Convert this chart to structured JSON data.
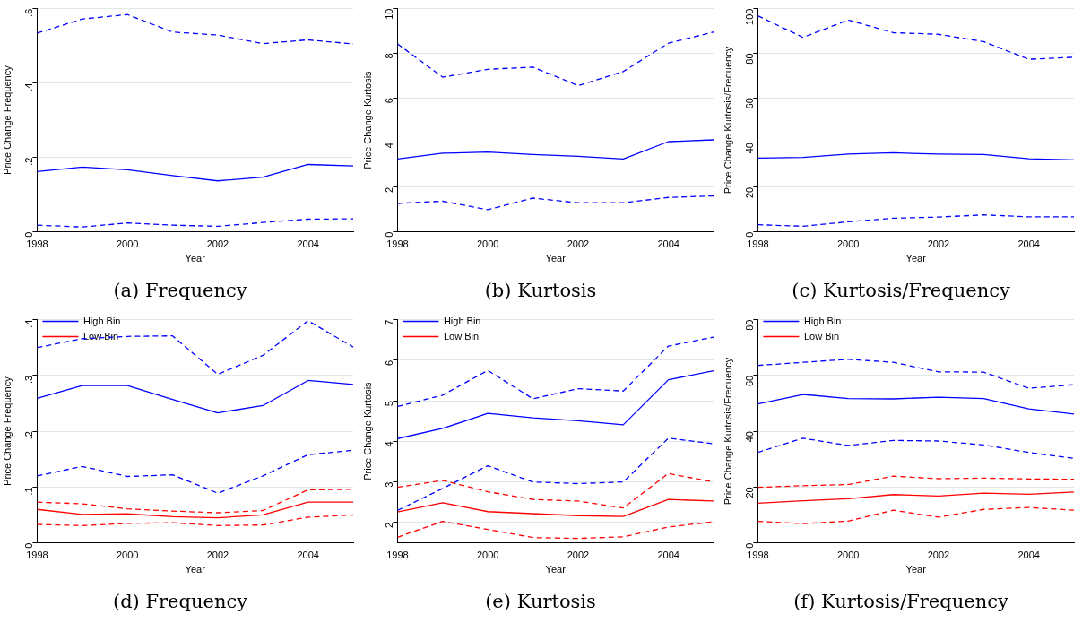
{
  "chart_data": [
    {
      "type": "line",
      "title": "(a)  Frequency",
      "xlabel": "Year",
      "ylabel": "Price Change Frequency",
      "x": [
        1998,
        1999,
        2000,
        2001,
        2002,
        2003,
        2004,
        2005
      ],
      "xlim": [
        1998,
        2005
      ],
      "xticks": [
        1998,
        2000,
        2002,
        2004
      ],
      "ylim": [
        0,
        0.6
      ],
      "yticks": [
        0,
        {
          "value": 0.2,
          "label": ".2"
        },
        {
          "value": 0.4,
          "label": ".4"
        },
        {
          "value": 0.6,
          "label": ".6"
        }
      ],
      "grid": "y",
      "legend": false,
      "marker": "none",
      "series": [
        {
          "color": "#0000ff",
          "line_style": "dashed",
          "values": [
            0.534,
            0.572,
            0.584,
            0.537,
            0.529,
            0.506,
            0.516,
            0.505
          ]
        },
        {
          "color": "#0000ff",
          "line_style": "solid",
          "values": [
            0.162,
            0.174,
            0.167,
            0.151,
            0.137,
            0.147,
            0.181,
            0.177
          ]
        },
        {
          "color": "#0000ff",
          "line_style": "dashed",
          "values": [
            0.018,
            0.013,
            0.024,
            0.018,
            0.015,
            0.025,
            0.034,
            0.035
          ]
        }
      ]
    },
    {
      "type": "line",
      "title": "(b)  Kurtosis",
      "xlabel": "Year",
      "ylabel": "Price Change Kurtosis",
      "x": [
        1998,
        1999,
        2000,
        2001,
        2002,
        2003,
        2004,
        2005
      ],
      "xlim": [
        1998,
        2005
      ],
      "xticks": [
        1998,
        2000,
        2002,
        2004
      ],
      "ylim": [
        0,
        10
      ],
      "yticks": [
        0,
        2,
        4,
        6,
        8,
        10
      ],
      "grid": "y",
      "legend": false,
      "marker": "none",
      "series": [
        {
          "color": "#0000ff",
          "line_style": "dashed",
          "values": [
            8.42,
            6.93,
            7.28,
            7.38,
            6.55,
            7.18,
            8.45,
            8.95
          ]
        },
        {
          "color": "#0000ff",
          "line_style": "solid",
          "values": [
            3.26,
            3.52,
            3.57,
            3.46,
            3.38,
            3.26,
            4.04,
            4.12
          ]
        },
        {
          "color": "#0000ff",
          "line_style": "dashed",
          "values": [
            1.27,
            1.37,
            0.99,
            1.51,
            1.3,
            1.3,
            1.54,
            1.61
          ]
        }
      ]
    },
    {
      "type": "line",
      "title": "(c)  Kurtosis/Frequency",
      "xlabel": "Year",
      "ylabel": "Price Change Kurtosis/Frequency",
      "x": [
        1998,
        1999,
        2000,
        2001,
        2002,
        2003,
        2004,
        2005
      ],
      "xlim": [
        1998,
        2005
      ],
      "xticks": [
        1998,
        2000,
        2002,
        2004
      ],
      "ylim": [
        0,
        100
      ],
      "yticks": [
        0,
        20,
        40,
        60,
        80,
        100
      ],
      "grid": "y",
      "legend": false,
      "marker": "none",
      "series": [
        {
          "color": "#0000ff",
          "line_style": "dashed",
          "values": [
            96.8,
            87.1,
            94.9,
            89.2,
            88.5,
            85.2,
            77.3,
            78.2
          ]
        },
        {
          "color": "#0000ff",
          "line_style": "solid",
          "values": [
            33.0,
            33.3,
            34.8,
            35.4,
            34.8,
            34.6,
            32.7,
            32.2
          ]
        },
        {
          "color": "#0000ff",
          "line_style": "dashed",
          "values": [
            3.2,
            2.5,
            4.5,
            6.1,
            6.6,
            7.6,
            6.7,
            6.7
          ]
        }
      ]
    },
    {
      "type": "line",
      "title": "(d)  Frequency",
      "xlabel": "Year",
      "ylabel": "Price Change Frequency",
      "x": [
        1998,
        1999,
        2000,
        2001,
        2002,
        2003,
        2004,
        2005
      ],
      "xlim": [
        1998,
        2005
      ],
      "xticks": [
        1998,
        2000,
        2002,
        2004
      ],
      "ylim": [
        0,
        0.4
      ],
      "yticks": [
        0,
        {
          "value": 0.1,
          "label": ".1"
        },
        {
          "value": 0.2,
          "label": ".2"
        },
        {
          "value": 0.3,
          "label": ".3"
        },
        {
          "value": 0.4,
          "label": ".4"
        }
      ],
      "grid": "y",
      "legend": "top left",
      "marker": "none",
      "series": [
        {
          "name": "High Bin",
          "color": "#0000ff",
          "line_style": "solid",
          "values": [
            0.259,
            0.282,
            0.282,
            0.257,
            0.233,
            0.246,
            0.291,
            0.284
          ]
        },
        {
          "name": "Low Bin",
          "color": "#ff0000",
          "line_style": "solid",
          "values": [
            0.06,
            0.051,
            0.052,
            0.047,
            0.045,
            0.05,
            0.073,
            0.073
          ]
        },
        {
          "color": "#0000ff",
          "line_style": "dashed",
          "values": [
            0.35,
            0.366,
            0.37,
            0.371,
            0.302,
            0.336,
            0.398,
            0.351
          ]
        },
        {
          "color": "#0000ff",
          "line_style": "dashed",
          "values": [
            0.12,
            0.137,
            0.119,
            0.122,
            0.089,
            0.12,
            0.158,
            0.166
          ]
        },
        {
          "color": "#ff0000",
          "line_style": "dashed",
          "values": [
            0.073,
            0.07,
            0.061,
            0.057,
            0.054,
            0.058,
            0.095,
            0.096
          ]
        },
        {
          "color": "#ff0000",
          "line_style": "dashed",
          "values": [
            0.033,
            0.031,
            0.035,
            0.036,
            0.031,
            0.032,
            0.046,
            0.05
          ]
        }
      ]
    },
    {
      "type": "line",
      "title": "(e)  Kurtosis",
      "xlabel": "Year",
      "ylabel": "Price Change Kurtosis",
      "x": [
        1998,
        1999,
        2000,
        2001,
        2002,
        2003,
        2004,
        2005
      ],
      "xlim": [
        1998,
        2005
      ],
      "xticks": [
        1998,
        2000,
        2002,
        2004
      ],
      "ylim": [
        1.5,
        7
      ],
      "yticks": [
        2,
        3,
        4,
        5,
        6,
        7
      ],
      "grid": "y",
      "legend": "top left",
      "marker": "none",
      "series": [
        {
          "name": "High Bin",
          "color": "#0000ff",
          "line_style": "solid",
          "values": [
            4.07,
            4.32,
            4.69,
            4.58,
            4.51,
            4.41,
            5.52,
            5.74
          ]
        },
        {
          "name": "Low Bin",
          "color": "#ff0000",
          "line_style": "solid",
          "values": [
            2.26,
            2.49,
            2.27,
            2.22,
            2.17,
            2.15,
            2.57,
            2.53
          ]
        },
        {
          "color": "#0000ff",
          "line_style": "dashed",
          "values": [
            4.86,
            5.14,
            5.75,
            5.05,
            5.3,
            5.24,
            6.35,
            6.57
          ]
        },
        {
          "color": "#0000ff",
          "line_style": "dashed",
          "values": [
            2.3,
            2.84,
            3.4,
            3.0,
            2.96,
            3.0,
            4.08,
            3.94
          ]
        },
        {
          "color": "#ff0000",
          "line_style": "dashed",
          "values": [
            2.87,
            3.04,
            2.76,
            2.57,
            2.53,
            2.36,
            3.21,
            3.0
          ]
        },
        {
          "color": "#ff0000",
          "line_style": "dashed",
          "values": [
            1.64,
            2.03,
            1.83,
            1.63,
            1.61,
            1.65,
            1.89,
            2.02
          ]
        }
      ]
    },
    {
      "type": "line",
      "title": "(f)  Kurtosis/Frequency",
      "xlabel": "Year",
      "ylabel": "Price Change Kurtosis/Frequency",
      "x": [
        1998,
        1999,
        2000,
        2001,
        2002,
        2003,
        2004,
        2005
      ],
      "xlim": [
        1998,
        2005
      ],
      "xticks": [
        1998,
        2000,
        2002,
        2004
      ],
      "ylim": [
        0,
        80
      ],
      "yticks": [
        0,
        20,
        40,
        60,
        80
      ],
      "grid": "y",
      "legend": "top left",
      "marker": "none",
      "series": [
        {
          "name": "High Bin",
          "color": "#0000ff",
          "line_style": "solid",
          "values": [
            49.8,
            53.2,
            51.7,
            51.6,
            52.2,
            51.7,
            48.0,
            46.2
          ]
        },
        {
          "name": "Low Bin",
          "color": "#ff0000",
          "line_style": "solid",
          "values": [
            14.2,
            15.1,
            15.8,
            17.3,
            16.8,
            17.8,
            17.4,
            18.2
          ]
        },
        {
          "color": "#0000ff",
          "line_style": "dashed",
          "values": [
            63.6,
            64.7,
            65.8,
            64.7,
            61.3,
            61.2,
            55.4,
            56.7
          ]
        },
        {
          "color": "#0000ff",
          "line_style": "dashed",
          "values": [
            32.4,
            37.5,
            34.9,
            36.7,
            36.5,
            35.1,
            32.4,
            30.3
          ]
        },
        {
          "color": "#ff0000",
          "line_style": "dashed",
          "values": [
            19.9,
            20.5,
            20.9,
            23.9,
            23.0,
            23.2,
            22.9,
            22.8
          ]
        },
        {
          "color": "#ff0000",
          "line_style": "dashed",
          "values": [
            7.7,
            6.9,
            7.8,
            11.7,
            9.2,
            12.0,
            12.7,
            11.7
          ]
        }
      ]
    }
  ]
}
